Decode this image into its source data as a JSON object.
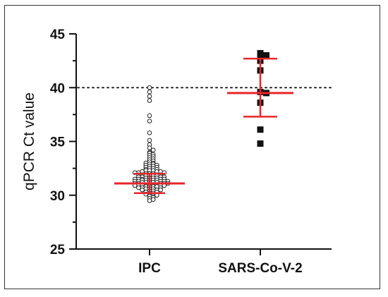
{
  "chart_data": {
    "type": "scatter",
    "ylabel": "qPCR Ct value",
    "xlabel": "",
    "title": "",
    "ylim": [
      25,
      45
    ],
    "yticks": [
      25,
      30,
      35,
      40,
      45
    ],
    "categories": [
      "IPC",
      "SARS-Co-V-2"
    ],
    "threshold": 40,
    "colors": {
      "axis": "#111111",
      "summary": "#e8262a",
      "ipc_marker": "#222222",
      "sars_marker": "#111111"
    },
    "series": [
      {
        "name": "IPC",
        "marker": "open-circle",
        "mean": 31.1,
        "sd_upper": 32.0,
        "sd_lower": 30.2,
        "values": [
          40.0,
          39.6,
          39.2,
          38.8,
          37.4,
          36.9,
          35.8,
          35.1,
          34.7,
          34.4,
          34.2,
          34.0,
          33.9,
          33.8,
          33.7,
          33.6,
          33.5,
          33.4,
          33.3,
          33.2,
          33.1,
          33.0,
          33.0,
          32.9,
          32.9,
          32.8,
          32.8,
          32.7,
          32.7,
          32.6,
          32.6,
          32.5,
          32.5,
          32.4,
          32.4,
          32.3,
          32.3,
          32.3,
          32.2,
          32.2,
          32.2,
          32.1,
          32.1,
          32.1,
          32.0,
          32.0,
          32.0,
          31.9,
          31.9,
          31.9,
          31.9,
          31.8,
          31.8,
          31.8,
          31.8,
          31.7,
          31.7,
          31.7,
          31.7,
          31.6,
          31.6,
          31.6,
          31.6,
          31.5,
          31.5,
          31.5,
          31.5,
          31.5,
          31.4,
          31.4,
          31.4,
          31.4,
          31.4,
          31.3,
          31.3,
          31.3,
          31.3,
          31.3,
          31.2,
          31.2,
          31.2,
          31.2,
          31.2,
          31.1,
          31.1,
          31.1,
          31.1,
          31.1,
          31.0,
          31.0,
          31.0,
          31.0,
          31.0,
          30.9,
          30.9,
          30.9,
          30.9,
          30.8,
          30.8,
          30.8,
          30.8,
          30.7,
          30.7,
          30.7,
          30.6,
          30.6,
          30.6,
          30.5,
          30.5,
          30.5,
          30.4,
          30.4,
          30.3,
          30.3,
          30.2,
          30.2,
          30.1,
          30.0,
          29.9,
          29.8,
          29.7,
          29.6,
          29.5
        ]
      },
      {
        "name": "SARS-Co-V-2",
        "marker": "filled-square",
        "mean": 39.5,
        "sd_upper": 42.7,
        "sd_lower": 37.3,
        "values": [
          43.2,
          43.0,
          43.0,
          42.5,
          41.6,
          39.6,
          39.5,
          38.6,
          36.1,
          34.8
        ]
      }
    ]
  }
}
